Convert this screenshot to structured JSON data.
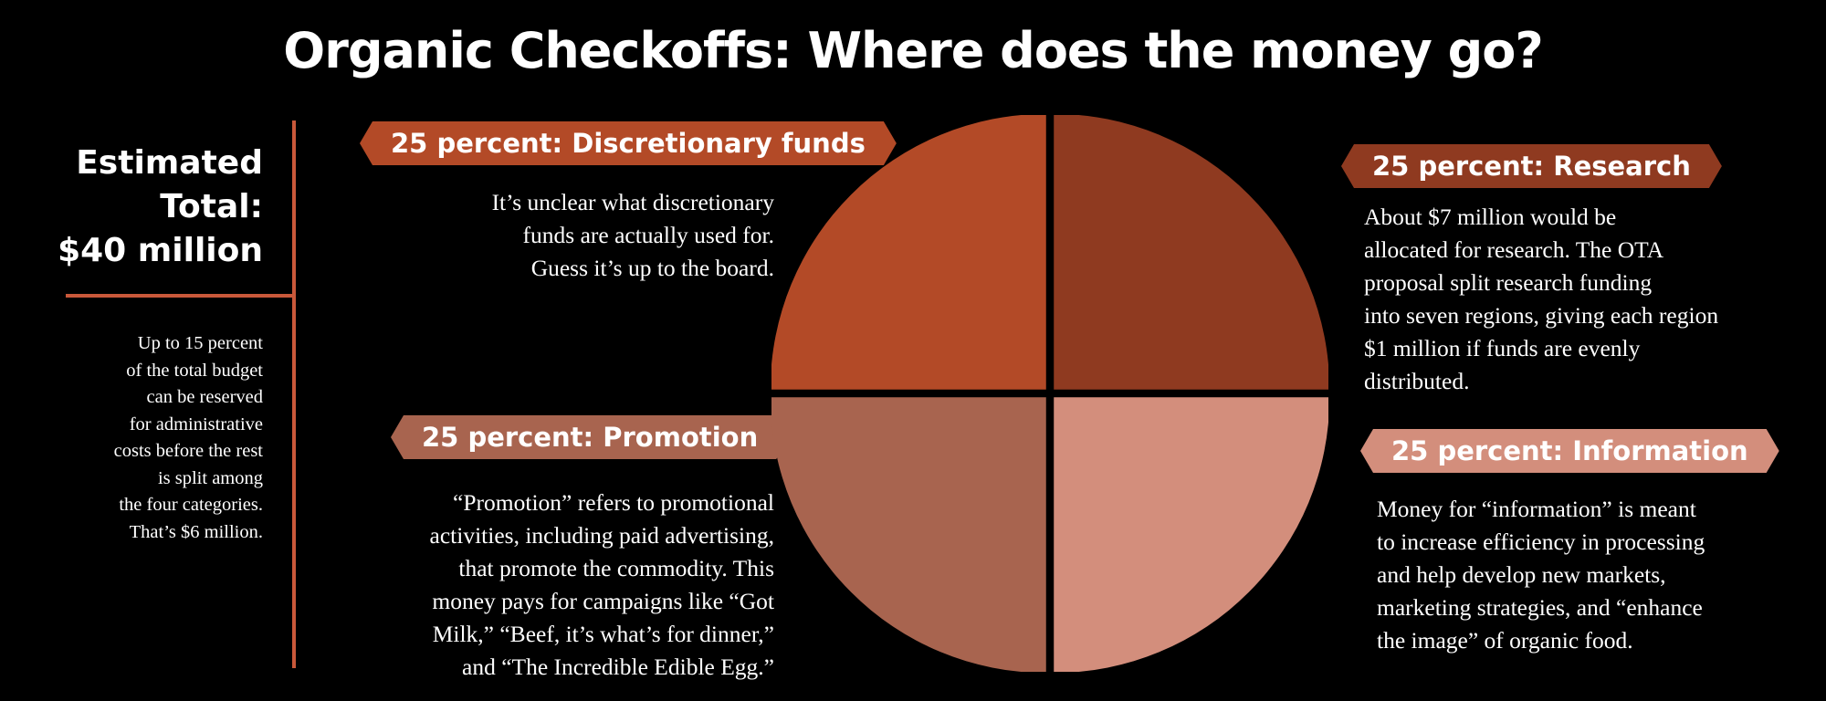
{
  "title": "Organic Checkoffs: Where does the money go?",
  "total": {
    "lines": [
      "Estimated",
      "Total:",
      "$40 million"
    ]
  },
  "admin_note": {
    "lines": [
      "Up to 15 percent",
      "of the total budget",
      "can be reserved",
      "for administrative",
      "costs before the rest",
      "is split among",
      "the four categories.",
      "That’s $6 million."
    ]
  },
  "colors": {
    "background": "#000000",
    "rule": "#c9583a",
    "discretionary": "#b34a27",
    "research": "#8f3a20",
    "promotion": "#a8644f",
    "information": "#d38e7c"
  },
  "chart_data": {
    "type": "pie",
    "title": "Organic Checkoffs: Where does the money go?",
    "slices": [
      {
        "label": "Research",
        "value": 25,
        "color": "#8f3a20"
      },
      {
        "label": "Information",
        "value": 25,
        "color": "#d38e7c"
      },
      {
        "label": "Promotion",
        "value": 25,
        "color": "#a8644f"
      },
      {
        "label": "Discretionary funds",
        "value": 25,
        "color": "#b34a27"
      }
    ]
  },
  "callouts": {
    "discretionary": {
      "heading": "25 percent: Discretionary funds",
      "lines": [
        "It’s unclear what discretionary",
        "funds are actually used for.",
        "Guess it’s up to the board."
      ]
    },
    "research": {
      "heading": "25 percent: Research",
      "lines": [
        "About $7 million would be",
        "allocated for research. The OTA",
        "proposal split research funding",
        "into seven regions, giving each region",
        "$1 million if funds are evenly",
        "distributed."
      ]
    },
    "promotion": {
      "heading": "25 percent: Promotion",
      "lines": [
        "“Promotion” refers to promotional",
        "activities, including paid advertising,",
        "that promote the commodity. This",
        "money pays for campaigns like “Got",
        "Milk,” “Beef, it’s what’s for dinner,”",
        "and “The Incredible Edible Egg.”"
      ]
    },
    "information": {
      "heading": "25 percent: Information",
      "lines": [
        "Money for “information” is meant",
        "to  increase efficiency in processing",
        "and help develop new markets,",
        "marketing strategies, and “enhance",
        "the image” of organic food."
      ]
    }
  }
}
